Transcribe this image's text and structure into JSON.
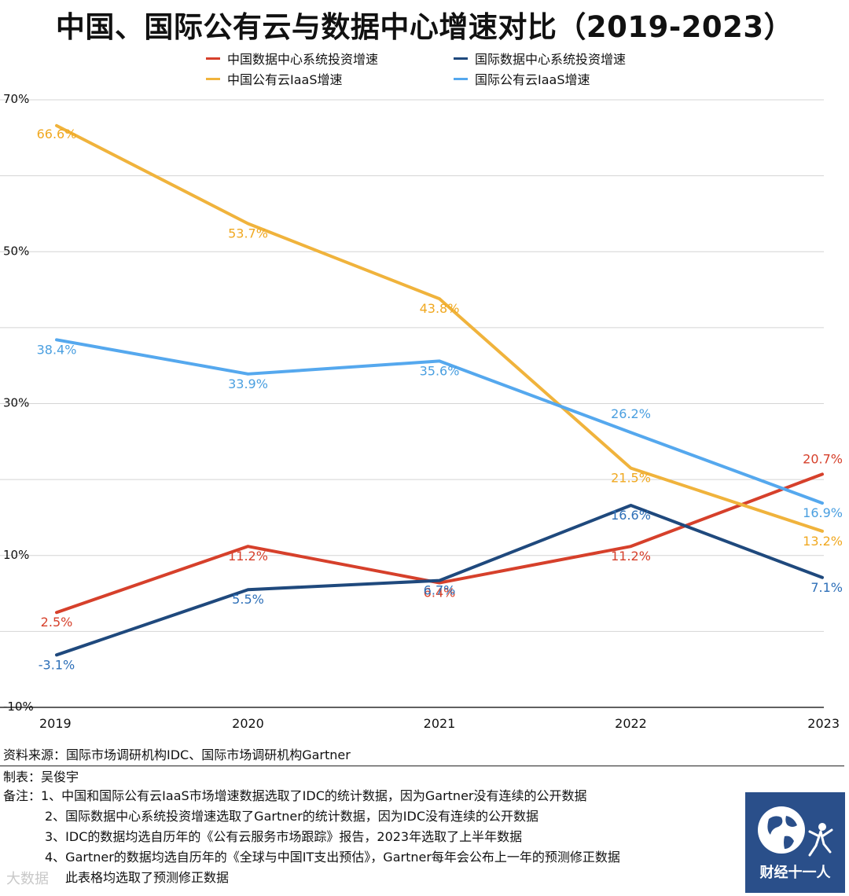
{
  "title": "中国、国际公有云与数据中心增速对比（2019-2023）",
  "colors": {
    "cn_dc": "#d6402b",
    "intl_dc": "#1f497d",
    "cn_iaas": "#f0b33c",
    "intl_iaas": "#55a8ee"
  },
  "chart_data": {
    "type": "line",
    "x": [
      "2019",
      "2020",
      "2021",
      "2022",
      "2023"
    ],
    "ylim": [
      -10,
      70
    ],
    "yticks": [
      -10,
      0,
      10,
      20,
      30,
      40,
      50,
      60,
      70
    ],
    "ytick_labels": [
      "-10%",
      "",
      "10%",
      "",
      "30%",
      "",
      "50%",
      "",
      "70%"
    ],
    "grid": true,
    "legend_placement": "top",
    "series": [
      {
        "name": "中国数据中心系统投资增速",
        "color": "#d6402b",
        "values": [
          2.5,
          11.2,
          6.4,
          11.2,
          20.7
        ],
        "labels": [
          "2.5%",
          "11.2%",
          "6.4%",
          "11.2%",
          "20.7%"
        ]
      },
      {
        "name": "国际数据中心系统投资增速",
        "color": "#1f497d",
        "values": [
          -3.1,
          5.5,
          6.7,
          16.6,
          7.1
        ],
        "labels": [
          "-3.1%",
          "5.5%",
          "6.7%",
          "16.6%",
          "7.1%"
        ]
      },
      {
        "name": "中国公有云IaaS增速",
        "color": "#f0b33c",
        "values": [
          66.6,
          53.7,
          43.8,
          21.5,
          13.2
        ],
        "labels": [
          "66.6%",
          "53.7%",
          "43.8%",
          "21.5%",
          "13.2%"
        ]
      },
      {
        "name": "国际公有云IaaS增速",
        "color": "#55a8ee",
        "values": [
          38.4,
          33.9,
          35.6,
          26.2,
          16.9
        ],
        "labels": [
          "38.4%",
          "33.9%",
          "35.6%",
          "26.2%",
          "16.9%"
        ]
      }
    ]
  },
  "footer": {
    "source": "资料来源：国际市场调研机构IDC、国际市场调研机构Gartner",
    "author": "制表：吴俊宇",
    "note1": "备注：1、中国和国际公有云IaaS市场增速数据选取了IDC的统计数据，因为Gartner没有连续的公开数据",
    "note2": "2、国际数据中心系统投资增速选取了Gartner的统计数据，因为IDC没有连续的公开数据",
    "note3": "3、IDC的数据均选自历年的《公有云服务市场跟踪》报告，2023年选取了上半年数据",
    "note4": "4、Gartner的数据均选自历年的《全球与中国IT支出预估》，Gartner每年会公布上一年的预测修正数据",
    "note5": "此表格均选取了预测修正数据"
  },
  "logo": {
    "text": "财经十一人",
    "icon": "globe-icon"
  },
  "watermark": "大数据"
}
